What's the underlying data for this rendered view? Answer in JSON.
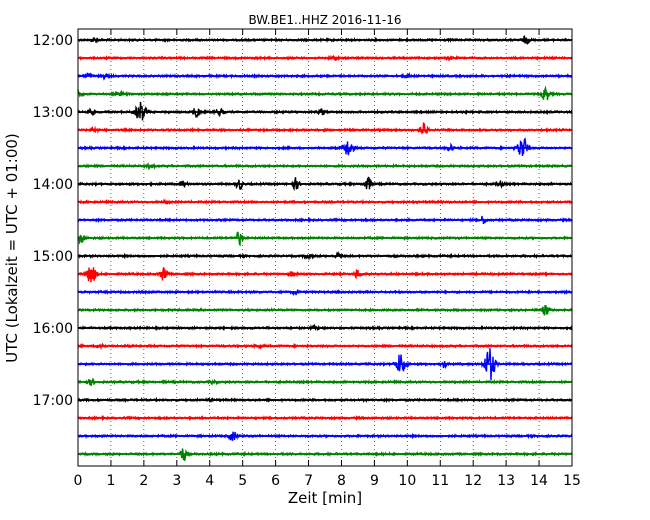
{
  "chart_data": {
    "type": "line",
    "title": "BW.BE1..HHZ 2016-11-16",
    "xlabel": "Zeit  [min]",
    "ylabel": "UTC (Lokalzeit = UTC + 01:00)",
    "xlim": [
      0,
      15
    ],
    "x_ticks": [
      "0",
      "1",
      "2",
      "3",
      "4",
      "5",
      "6",
      "7",
      "8",
      "9",
      "10",
      "11",
      "12",
      "13",
      "14",
      "15"
    ],
    "y_tick_labels": [
      "12:00",
      "13:00",
      "14:00",
      "15:00",
      "16:00",
      "17:00"
    ],
    "trace_interval_minutes": 15,
    "start_time": "12:00",
    "grid": "vertical dotted",
    "colors": [
      "#000000",
      "#ff0000",
      "#0000ff",
      "#008000"
    ],
    "traces": [
      {
        "start": "12:00",
        "events": [
          [
            0.5,
            0.3
          ],
          [
            13.6,
            0.5
          ]
        ]
      },
      {
        "start": "12:15",
        "events": [
          [
            7.8,
            0.3
          ],
          [
            11.3,
            0.2
          ]
        ]
      },
      {
        "start": "12:30",
        "events": [
          [
            0.3,
            0.4
          ],
          [
            0.8,
            0.3
          ],
          [
            10.0,
            0.2
          ]
        ]
      },
      {
        "start": "12:45",
        "events": [
          [
            0.0,
            0.5
          ],
          [
            1.3,
            0.2
          ],
          [
            14.2,
            1.0
          ]
        ]
      },
      {
        "start": "13:00",
        "events": [
          [
            0.4,
            0.4
          ],
          [
            1.9,
            1.3
          ],
          [
            3.6,
            0.7
          ],
          [
            4.3,
            0.5
          ],
          [
            7.4,
            0.4
          ]
        ]
      },
      {
        "start": "13:15",
        "events": [
          [
            0.5,
            0.3
          ],
          [
            10.5,
            0.9
          ]
        ]
      },
      {
        "start": "13:30",
        "events": [
          [
            8.2,
            1.1
          ],
          [
            11.3,
            0.4
          ],
          [
            13.5,
            1.5
          ]
        ]
      },
      {
        "start": "13:45",
        "events": [
          [
            2.2,
            0.3
          ]
        ]
      },
      {
        "start": "14:00",
        "events": [
          [
            3.2,
            0.4
          ],
          [
            4.9,
            0.7
          ],
          [
            6.6,
            0.8
          ],
          [
            8.8,
            1.0
          ],
          [
            12.8,
            0.4
          ]
        ]
      },
      {
        "start": "14:15",
        "events": [
          [
            2.7,
            0.2
          ]
        ]
      },
      {
        "start": "14:30",
        "events": [
          [
            12.3,
            0.5
          ]
        ]
      },
      {
        "start": "14:45",
        "events": [
          [
            0.1,
            0.7
          ],
          [
            4.9,
            0.9
          ]
        ]
      },
      {
        "start": "15:00",
        "events": [
          [
            7.0,
            0.4
          ],
          [
            7.9,
            0.3
          ]
        ]
      },
      {
        "start": "15:15",
        "events": [
          [
            0.4,
            1.2
          ],
          [
            2.6,
            1.0
          ],
          [
            6.5,
            0.3
          ],
          [
            8.5,
            0.6
          ]
        ]
      },
      {
        "start": "15:30",
        "events": [
          [
            6.6,
            0.2
          ]
        ]
      },
      {
        "start": "15:45",
        "events": [
          [
            14.2,
            0.7
          ]
        ]
      },
      {
        "start": "16:00",
        "events": [
          [
            7.2,
            0.2
          ]
        ]
      },
      {
        "start": "16:15",
        "events": [
          [
            0.7,
            0.4
          ],
          [
            5.5,
            0.2
          ]
        ]
      },
      {
        "start": "16:30",
        "events": [
          [
            9.8,
            1.4
          ],
          [
            11.1,
            0.5
          ],
          [
            12.5,
            2.3
          ]
        ]
      },
      {
        "start": "16:45",
        "events": [
          [
            0.4,
            0.4
          ],
          [
            4.1,
            0.2
          ]
        ]
      },
      {
        "start": "17:00",
        "events": [
          [
            4.0,
            0.2
          ]
        ]
      },
      {
        "start": "17:15",
        "events": []
      },
      {
        "start": "17:30",
        "events": [
          [
            4.7,
            0.7
          ]
        ]
      },
      {
        "start": "17:45",
        "events": [
          [
            3.2,
            0.9
          ]
        ]
      }
    ]
  }
}
